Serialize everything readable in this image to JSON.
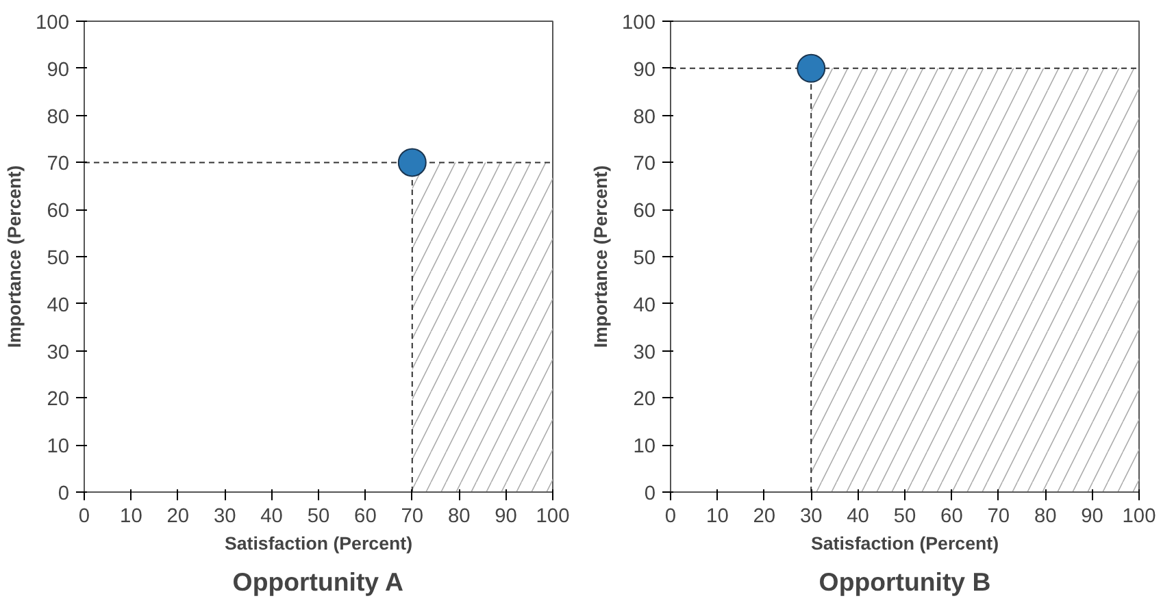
{
  "chart_data": [
    {
      "type": "scatter",
      "title": "Opportunity A",
      "xlabel": "Satisfaction (Percent)",
      "ylabel": "Importance (Percent)",
      "x": [
        70
      ],
      "values": [
        70
      ],
      "color": "#2a7ab8",
      "marker": "circle",
      "xlim": [
        0,
        100
      ],
      "ylim": [
        0,
        100
      ],
      "xticks": [
        0,
        10,
        20,
        30,
        40,
        50,
        60,
        70,
        80,
        90,
        100
      ],
      "yticks": [
        0,
        10,
        20,
        30,
        40,
        50,
        60,
        70,
        80,
        90,
        100
      ],
      "grid": false,
      "ref_lines": [
        {
          "axis": "y",
          "value": 70,
          "line_style": "dashed",
          "color": "#333333"
        },
        {
          "axis": "x",
          "value": 70,
          "line_style": "dashed",
          "color": "#333333"
        }
      ],
      "bands": [
        {
          "axis": "x",
          "from": 70,
          "to": 100,
          "color": "#aaaaaa"
        }
      ]
    },
    {
      "type": "scatter",
      "title": "Opportunity B",
      "xlabel": "Satisfaction (Percent)",
      "ylabel": "Importance (Percent)",
      "x": [
        30
      ],
      "values": [
        90
      ],
      "color": "#2a7ab8",
      "marker": "circle",
      "xlim": [
        0,
        100
      ],
      "ylim": [
        0,
        100
      ],
      "xticks": [
        0,
        10,
        20,
        30,
        40,
        50,
        60,
        70,
        80,
        90,
        100
      ],
      "yticks": [
        0,
        10,
        20,
        30,
        40,
        50,
        60,
        70,
        80,
        90,
        100
      ],
      "grid": false,
      "ref_lines": [
        {
          "axis": "y",
          "value": 90,
          "line_style": "dashed",
          "color": "#333333"
        },
        {
          "axis": "x",
          "value": 30,
          "line_style": "dashed",
          "color": "#333333"
        }
      ],
      "bands": [
        {
          "axis": "x",
          "from": 30,
          "to": 100,
          "color": "#aaaaaa"
        }
      ]
    }
  ]
}
